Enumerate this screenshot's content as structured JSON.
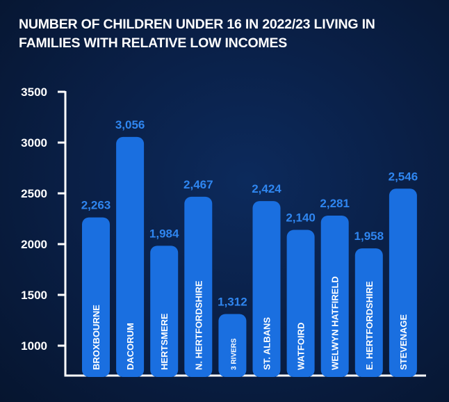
{
  "title": "NUMBER OF CHILDREN UNDER 16 IN 2022/23 LIVING IN FAMILIES WITH RELATIVE LOW INCOMES",
  "colors": {
    "background": "#0a2048",
    "bar": "#1a6fe0",
    "value_label": "#2f86f0",
    "axis": "#ffffff",
    "tick_label": "#ffffff",
    "bar_label": "#ffffff"
  },
  "chart_data": {
    "type": "bar",
    "title": "NUMBER OF CHILDREN UNDER 16 IN 2022/23 LIVING IN FAMILIES WITH RELATIVE LOW INCOMES",
    "categories": [
      "BROXBOURNE",
      "DACORUM",
      "HERTSMERE",
      "N. HERTFORDSHIRE",
      "3 RIVERS",
      "ST. ALBANS",
      "WATFOIRD",
      "WELWYN HATFIRELD",
      "E. HERTFORDSHIRE",
      "STEVENAGE"
    ],
    "values": [
      2263,
      3056,
      1984,
      2467,
      1312,
      2424,
      2140,
      2281,
      1958,
      2546
    ],
    "value_labels": [
      "2,263",
      "3,056",
      "1,984",
      "2,467",
      "1,312",
      "2,424",
      "2,140",
      "2,281",
      "1,958",
      "2,546"
    ],
    "yticks": [
      1000,
      1500,
      2000,
      2500,
      3000,
      3500
    ],
    "ylim": [
      750,
      3500
    ],
    "xlabel": "",
    "ylabel": "",
    "grid": false,
    "legend": "none"
  }
}
